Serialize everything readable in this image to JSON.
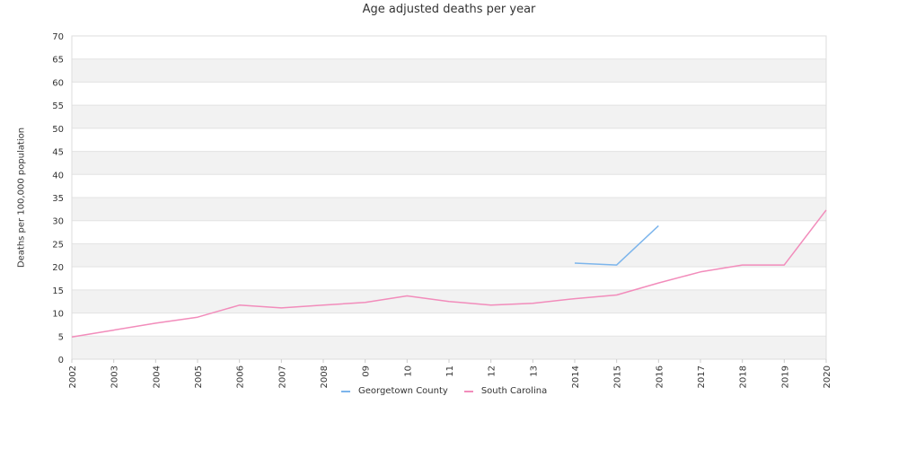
{
  "chart_data": {
    "type": "line",
    "title": "Age adjusted deaths per year",
    "xlabel": "",
    "ylabel": "Deaths per 100,000 population",
    "x": [
      "2002",
      "2003",
      "2004",
      "2005",
      "2006",
      "2007",
      "2008",
      "09",
      "10",
      "11",
      "12",
      "13",
      "2014",
      "2015",
      "2016",
      "2017",
      "2018",
      "2019",
      "2020"
    ],
    "ylim": [
      0,
      70
    ],
    "yticks": [
      0,
      5,
      10,
      15,
      20,
      25,
      30,
      35,
      40,
      45,
      50,
      55,
      60,
      65,
      70
    ],
    "grid": "horizontal alternating bands",
    "legend_position": "bottom-center",
    "series": [
      {
        "name": "Georgetown County",
        "color": "#7cb5ec",
        "values": [
          null,
          null,
          null,
          null,
          null,
          null,
          null,
          null,
          null,
          null,
          null,
          null,
          20.8,
          20.4,
          28.9,
          null,
          null,
          null,
          null
        ]
      },
      {
        "name": "South Carolina",
        "color": "#f28cbb",
        "values": [
          4.8,
          6.3,
          7.8,
          9.1,
          11.7,
          11.1,
          11.7,
          12.3,
          13.7,
          12.5,
          11.7,
          12.1,
          13.1,
          13.9,
          16.5,
          18.9,
          20.4,
          20.4,
          32.3
        ]
      }
    ]
  }
}
